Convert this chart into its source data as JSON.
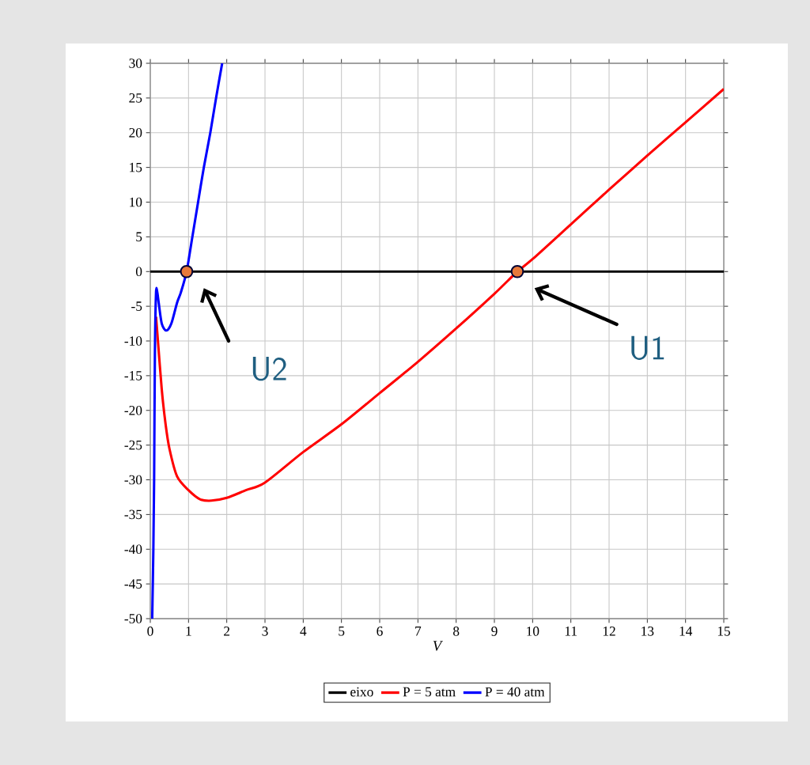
{
  "chart_data": {
    "type": "line",
    "xlabel": "V",
    "xlim": [
      0,
      15
    ],
    "ylim": [
      -50,
      30
    ],
    "xticks": [
      0,
      1,
      2,
      3,
      4,
      5,
      6,
      7,
      8,
      9,
      10,
      11,
      12,
      13,
      14,
      15
    ],
    "yticks": [
      -50,
      -45,
      -40,
      -35,
      -30,
      -25,
      -20,
      -15,
      -10,
      -5,
      0,
      5,
      10,
      15,
      20,
      25,
      30
    ],
    "grid": true,
    "legend": "bottom",
    "marker": "none",
    "line_style": "solid",
    "series": [
      {
        "name": "eixo",
        "color": "#000000",
        "x": [
          0,
          15
        ],
        "values": [
          0,
          0
        ]
      },
      {
        "name": "P = 5 atm",
        "color": "#ff0000",
        "x": [
          0.15,
          0.2,
          0.3,
          0.4,
          0.5,
          0.7,
          1,
          1.3,
          1.6,
          2,
          2.5,
          3,
          4,
          5,
          6,
          7,
          8,
          9,
          9.6,
          10,
          11,
          12,
          13,
          14,
          15
        ],
        "values": [
          -6.5,
          -10,
          -17,
          -22,
          -25.5,
          -29.5,
          -31.5,
          -32.8,
          -33,
          -32.6,
          -31.5,
          -30.4,
          -26,
          -22,
          -17.5,
          -13,
          -8.2,
          -3.2,
          0,
          1.8,
          6.8,
          11.8,
          16.7,
          21.5,
          26.3
        ]
      },
      {
        "name": "P = 40 atm",
        "color": "#0000ff",
        "x": [
          0.05,
          0.08,
          0.1,
          0.12,
          0.15,
          0.18,
          0.22,
          0.3,
          0.42,
          0.55,
          0.7,
          0.8,
          0.95,
          1.1,
          1.25,
          1.4,
          1.57,
          1.72,
          1.88
        ],
        "values": [
          -50,
          -40,
          -30,
          -12,
          -3,
          -2.9,
          -4.5,
          -7.5,
          -8.5,
          -7.5,
          -4.5,
          -3,
          0,
          5,
          10,
          15,
          20,
          25,
          30
        ]
      },
      {
        "type": "scatter",
        "marker": "circle",
        "color": "#e8793a",
        "x": [
          0.95,
          9.6
        ],
        "values": [
          0,
          0
        ]
      }
    ],
    "annotations": [
      "U2",
      "U1"
    ]
  }
}
